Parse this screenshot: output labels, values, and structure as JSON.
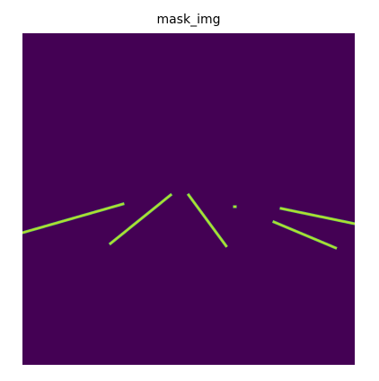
{
  "chart_data": {
    "type": "heatmap",
    "title": "mask_img",
    "xlabel": "",
    "ylabel": "",
    "axes_visible": false,
    "colormap": "viridis",
    "colors": {
      "background": "#440154",
      "mask": "#b5de2b",
      "mask_edge": "#5ec962"
    },
    "image_shape": [
      369,
      370
    ],
    "value_range": [
      0,
      1
    ],
    "segments": [
      {
        "name": "left-outer-line",
        "value": 1,
        "points": [
          [
            0,
            222
          ],
          [
            112,
            190
          ]
        ]
      },
      {
        "name": "left-inner-line",
        "value": 1,
        "points": [
          [
            98,
            234
          ],
          [
            165,
            180
          ]
        ]
      },
      {
        "name": "center-right-line",
        "value": 1,
        "points": [
          [
            185,
            180
          ],
          [
            227,
            237
          ]
        ]
      },
      {
        "name": "dot",
        "value": 1,
        "points": [
          [
            236,
            193
          ],
          [
            237,
            193
          ]
        ]
      },
      {
        "name": "right-upper-line",
        "value": 1,
        "points": [
          [
            288,
            195
          ],
          [
            370,
            212
          ]
        ]
      },
      {
        "name": "right-lower-line",
        "value": 1,
        "points": [
          [
            280,
            210
          ],
          [
            349,
            239
          ]
        ]
      }
    ]
  }
}
